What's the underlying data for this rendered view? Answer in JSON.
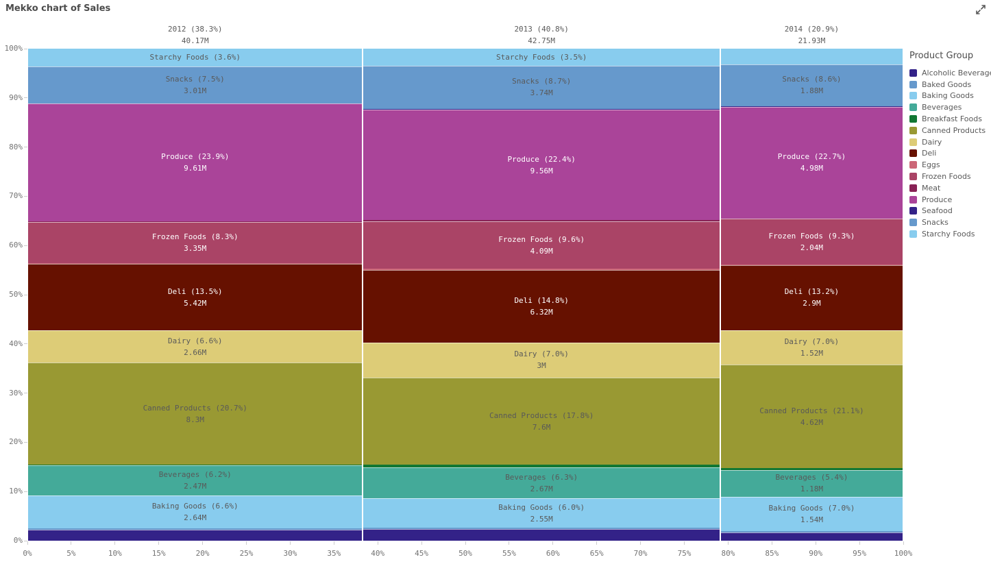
{
  "title": "Mekko chart of Sales",
  "legend": {
    "title": "Product Group",
    "items": [
      {
        "label": "Alcoholic Beverages",
        "color": "#332288"
      },
      {
        "label": "Baked Goods",
        "color": "#6699CC"
      },
      {
        "label": "Baking Goods",
        "color": "#88CCEE"
      },
      {
        "label": "Beverages",
        "color": "#44AA99"
      },
      {
        "label": "Breakfast Foods",
        "color": "#117733"
      },
      {
        "label": "Canned Products",
        "color": "#999933"
      },
      {
        "label": "Dairy",
        "color": "#DDCC77"
      },
      {
        "label": "Deli",
        "color": "#661100"
      },
      {
        "label": "Eggs",
        "color": "#CC6677"
      },
      {
        "label": "Frozen Foods",
        "color": "#AA4466"
      },
      {
        "label": "Meat",
        "color": "#882255"
      },
      {
        "label": "Produce",
        "color": "#AA4499"
      },
      {
        "label": "Seafood",
        "color": "#332288"
      },
      {
        "label": "Snacks",
        "color": "#6699CC"
      },
      {
        "label": "Starchy Foods",
        "color": "#88CCEE"
      }
    ]
  },
  "chart_data": {
    "type": "mekko",
    "title": "Mekko chart of Sales",
    "legend_title": "Product Group",
    "y_axis_ticks": [
      "0%",
      "10%",
      "20%",
      "30%",
      "40%",
      "50%",
      "60%",
      "70%",
      "80%",
      "90%",
      "100%"
    ],
    "x_axis_ticks": [
      "0%",
      "5%",
      "10%",
      "15%",
      "20%",
      "25%",
      "30%",
      "35%",
      "40%",
      "45%",
      "50%",
      "55%",
      "60%",
      "65%",
      "70%",
      "75%",
      "80%",
      "85%",
      "90%",
      "95%",
      "100%"
    ],
    "palette": {
      "Alcoholic Beverages": "#332288",
      "Baked Goods": "#6699CC",
      "Baking Goods": "#88CCEE",
      "Beverages": "#44AA99",
      "Breakfast Foods": "#117733",
      "Canned Products": "#999933",
      "Dairy": "#DDCC77",
      "Deli": "#661100",
      "Eggs": "#CC6677",
      "Frozen Foods": "#AA4466",
      "Meat": "#882255",
      "Produce": "#AA4499",
      "Seafood": "#332288",
      "Snacks": "#6699CC",
      "Starchy Foods": "#88CCEE"
    },
    "columns": [
      {
        "category": "2012",
        "header_line1": "2012 (38.3%)",
        "header_line2": "40.17M",
        "width_pct": 38.3,
        "total": "40.17M",
        "segments_top_to_bottom": [
          {
            "name": "Starchy Foods",
            "pct": 3.6,
            "label": "Starchy Foods (3.6%)",
            "text": "dark"
          },
          {
            "name": "Snacks",
            "pct": 7.5,
            "label": "Snacks (7.5%)",
            "value": "3.01M",
            "text": "dark"
          },
          {
            "name": "Seafood",
            "pct": 0.1
          },
          {
            "name": "Produce",
            "pct": 23.9,
            "label": "Produce (23.9%)",
            "value": "9.61M",
            "text": "light"
          },
          {
            "name": "Meat",
            "pct": 0.2
          },
          {
            "name": "Frozen Foods",
            "pct": 8.3,
            "label": "Frozen Foods (8.3%)",
            "value": "3.35M",
            "text": "light"
          },
          {
            "name": "Eggs",
            "pct": 0.15
          },
          {
            "name": "Deli",
            "pct": 13.5,
            "label": "Deli (13.5%)",
            "value": "5.42M",
            "text": "light"
          },
          {
            "name": "Dairy",
            "pct": 6.6,
            "label": "Dairy (6.6%)",
            "value": "2.66M",
            "text": "dark"
          },
          {
            "name": "Canned Products",
            "pct": 20.7,
            "label": "Canned Products (20.7%)",
            "value": "8.3M",
            "text": "dark"
          },
          {
            "name": "Breakfast Foods",
            "pct": 0.1
          },
          {
            "name": "Beverages",
            "pct": 6.2,
            "label": "Beverages (6.2%)",
            "value": "2.47M",
            "text": "dark"
          },
          {
            "name": "Baking Goods",
            "pct": 6.6,
            "label": "Baking Goods (6.6%)",
            "value": "2.64M",
            "text": "dark"
          },
          {
            "name": "Baked Goods",
            "pct": 0.35
          },
          {
            "name": "Alcoholic Beverages",
            "pct": 2.2
          }
        ]
      },
      {
        "category": "2013",
        "header_line1": "2013 (40.8%)",
        "header_line2": "42.75M",
        "width_pct": 40.8,
        "total": "42.75M",
        "segments_top_to_bottom": [
          {
            "name": "Starchy Foods",
            "pct": 3.5,
            "label": "Starchy Foods (3.5%)",
            "text": "dark"
          },
          {
            "name": "Snacks",
            "pct": 8.7,
            "label": "Snacks (8.7%)",
            "value": "3.74M",
            "text": "dark"
          },
          {
            "name": "Seafood",
            "pct": 0.25
          },
          {
            "name": "Produce",
            "pct": 22.4,
            "label": "Produce (22.4%)",
            "value": "9.56M",
            "text": "light"
          },
          {
            "name": "Meat",
            "pct": 0.3
          },
          {
            "name": "Frozen Foods",
            "pct": 9.6,
            "label": "Frozen Foods (9.6%)",
            "value": "4.09M",
            "text": "light"
          },
          {
            "name": "Eggs",
            "pct": 0.25
          },
          {
            "name": "Deli",
            "pct": 14.8,
            "label": "Deli (14.8%)",
            "value": "6.32M",
            "text": "light"
          },
          {
            "name": "Dairy",
            "pct": 7.0,
            "label": "Dairy (7.0%)",
            "value": "3M",
            "text": "dark"
          },
          {
            "name": "Canned Products",
            "pct": 17.8,
            "label": "Canned Products (17.8%)",
            "value": "7.6M",
            "text": "dark"
          },
          {
            "name": "Breakfast Foods",
            "pct": 0.5
          },
          {
            "name": "Beverages",
            "pct": 6.3,
            "label": "Beverages (6.3%)",
            "value": "2.67M",
            "text": "dark"
          },
          {
            "name": "Baking Goods",
            "pct": 6.0,
            "label": "Baking Goods (6.0%)",
            "value": "2.55M",
            "text": "dark"
          },
          {
            "name": "Baked Goods",
            "pct": 0.3
          },
          {
            "name": "Alcoholic Beverages",
            "pct": 2.3
          }
        ]
      },
      {
        "category": "2014",
        "header_line1": "2014 (20.9%)",
        "header_line2": "21.93M",
        "width_pct": 20.9,
        "total": "21.93M",
        "segments_top_to_bottom": [
          {
            "name": "Starchy Foods",
            "pct": 3.15
          },
          {
            "name": "Snacks",
            "pct": 8.6,
            "label": "Snacks (8.6%)",
            "value": "1.88M",
            "text": "dark"
          },
          {
            "name": "Seafood",
            "pct": 0.05
          },
          {
            "name": "Produce",
            "pct": 22.7,
            "label": "Produce (22.7%)",
            "value": "4.98M",
            "text": "light"
          },
          {
            "name": "Meat",
            "pct": 0.1
          },
          {
            "name": "Frozen Foods",
            "pct": 9.3,
            "label": "Frozen Foods (9.3%)",
            "value": "2.04M",
            "text": "light"
          },
          {
            "name": "Eggs",
            "pct": 0.1
          },
          {
            "name": "Deli",
            "pct": 13.2,
            "label": "Deli (13.2%)",
            "value": "2.9M",
            "text": "light"
          },
          {
            "name": "Dairy",
            "pct": 7.0,
            "label": "Dairy (7.0%)",
            "value": "1.52M",
            "text": "dark"
          },
          {
            "name": "Canned Products",
            "pct": 21.1,
            "label": "Canned Products (21.1%)",
            "value": "4.62M",
            "text": "dark"
          },
          {
            "name": "Breakfast Foods",
            "pct": 0.35
          },
          {
            "name": "Beverages",
            "pct": 5.4,
            "label": "Beverages (5.4%)",
            "value": "1.18M",
            "text": "dark"
          },
          {
            "name": "Baking Goods",
            "pct": 7.0,
            "label": "Baking Goods (7.0%)",
            "value": "1.54M",
            "text": "dark"
          },
          {
            "name": "Baked Goods",
            "pct": 0.25
          },
          {
            "name": "Alcoholic Beverages",
            "pct": 1.7
          }
        ]
      }
    ]
  }
}
